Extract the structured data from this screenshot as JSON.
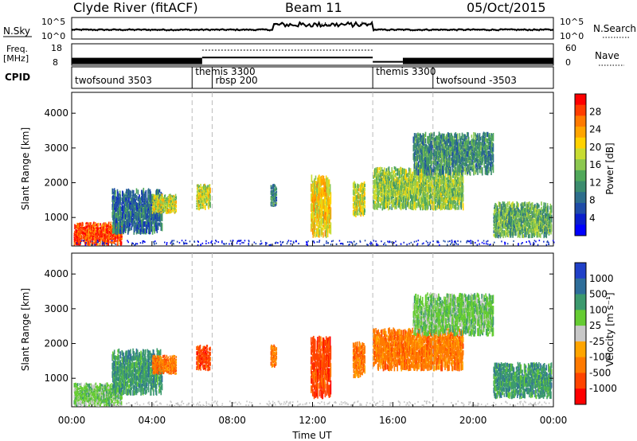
{
  "header": {
    "station": "Clyde River (fitACF)",
    "beam": "Beam 11",
    "date": "05/Oct/2015"
  },
  "top_panels": {
    "nsky_label": "N.Sky",
    "nsky_ticks": [
      "10^5",
      "10^0"
    ],
    "nsearch_label": "N.Search",
    "freq_label_1": "Freq.",
    "freq_label_2": "[MHz]",
    "freq_ticks": [
      "18",
      "8"
    ],
    "nave_label": "Nave",
    "nave_ticks": [
      "60",
      "0"
    ],
    "cpid_label": "CPID"
  },
  "cpid_segments": [
    {
      "start_h": 0,
      "end_h": 6,
      "label": "twofsound 3503"
    },
    {
      "start_h": 6,
      "end_h": 15,
      "label": "themis 3300"
    },
    {
      "start_h": 7,
      "end_h": 15,
      "label": "rbsp 200"
    },
    {
      "start_h": 15,
      "end_h": 18,
      "label": "themis 3300"
    },
    {
      "start_h": 18,
      "end_h": 24,
      "label": "twofsound -3503"
    }
  ],
  "axes": {
    "ylabel": "Slant Range [km]",
    "yticks": [
      "1000",
      "2000",
      "3000",
      "4000"
    ],
    "xticks": [
      "00:00",
      "04:00",
      "08:00",
      "12:00",
      "16:00",
      "20:00",
      "00:00"
    ],
    "xlabel": "Time UT"
  },
  "power_colorbar": {
    "title": "Power [dB]",
    "ticks": [
      "28",
      "24",
      "20",
      "16",
      "12",
      "8",
      "4"
    ],
    "colors": [
      "#ff0000",
      "#ff3d00",
      "#ff7a00",
      "#ffa500",
      "#ffd200",
      "#c8dc32",
      "#8cc850",
      "#50a85a",
      "#3c8c6e",
      "#2e6e8c",
      "#1f4ca8",
      "#0a1ecc",
      "#0000ff"
    ]
  },
  "velocity_colorbar": {
    "title": "Velocity [m s⁻¹]",
    "ticks": [
      "1000",
      "500",
      "100",
      "25",
      "-25",
      "-100",
      "-500",
      "-1000"
    ],
    "colors": [
      "#2040c8",
      "#2e6e9a",
      "#3c9a6e",
      "#66cc33",
      "#c8c8c8",
      "#ffa500",
      "#ff7a00",
      "#ff4400",
      "#ff0000"
    ]
  },
  "chart_data": {
    "type": "heatmap",
    "title": "Clyde River (fitACF) Beam 11 05/Oct/2015",
    "xlabel": "Time UT",
    "ylabel": "Slant Range [km]",
    "xlim_hours": [
      0,
      24
    ],
    "ylim_km": [
      180,
      4600
    ],
    "mode_boundaries_hours": [
      6,
      7,
      15,
      18
    ],
    "freq_mhz": [
      {
        "start_h": 0,
        "end_h": 6.5,
        "value": 10
      },
      {
        "start_h": 6.5,
        "end_h": 15,
        "value": 12
      },
      {
        "start_h": 15,
        "end_h": 16.5,
        "value": 10
      },
      {
        "start_h": 16.5,
        "end_h": 24,
        "value": 10
      }
    ],
    "echo_regions": [
      {
        "t0": 0.1,
        "t1": 2.5,
        "r0": 180,
        "r1": 900,
        "power_db": 28,
        "velocity": 25
      },
      {
        "t0": 2.0,
        "t1": 4.5,
        "r0": 500,
        "r1": 1900,
        "power_db": 10,
        "velocity": 100
      },
      {
        "t0": 4.0,
        "t1": 5.2,
        "r0": 1100,
        "r1": 1700,
        "power_db": 18,
        "velocity": -100
      },
      {
        "t0": 6.2,
        "t1": 6.9,
        "r0": 1200,
        "r1": 2000,
        "power_db": 20,
        "velocity": -300
      },
      {
        "t0": 9.9,
        "t1": 10.2,
        "r0": 1300,
        "r1": 2000,
        "power_db": 12,
        "velocity": -150
      },
      {
        "t0": 11.9,
        "t1": 12.9,
        "r0": 400,
        "r1": 2300,
        "power_db": 22,
        "velocity": -300
      },
      {
        "t0": 14.0,
        "t1": 14.6,
        "r0": 1000,
        "r1": 2100,
        "power_db": 18,
        "velocity": -200
      },
      {
        "t0": 15.0,
        "t1": 19.5,
        "r0": 1200,
        "r1": 2500,
        "power_db": 16,
        "velocity": -150
      },
      {
        "t0": 17.0,
        "t1": 21.0,
        "r0": 2200,
        "r1": 3500,
        "power_db": 12,
        "velocity": 25
      },
      {
        "t0": 21.0,
        "t1": 23.9,
        "r0": 400,
        "r1": 1500,
        "power_db": 14,
        "velocity": 100
      }
    ],
    "annotations": [
      "twofsound 3503",
      "themis 3300",
      "rbsp 200",
      "themis 3300",
      "twofsound -3503"
    ]
  }
}
